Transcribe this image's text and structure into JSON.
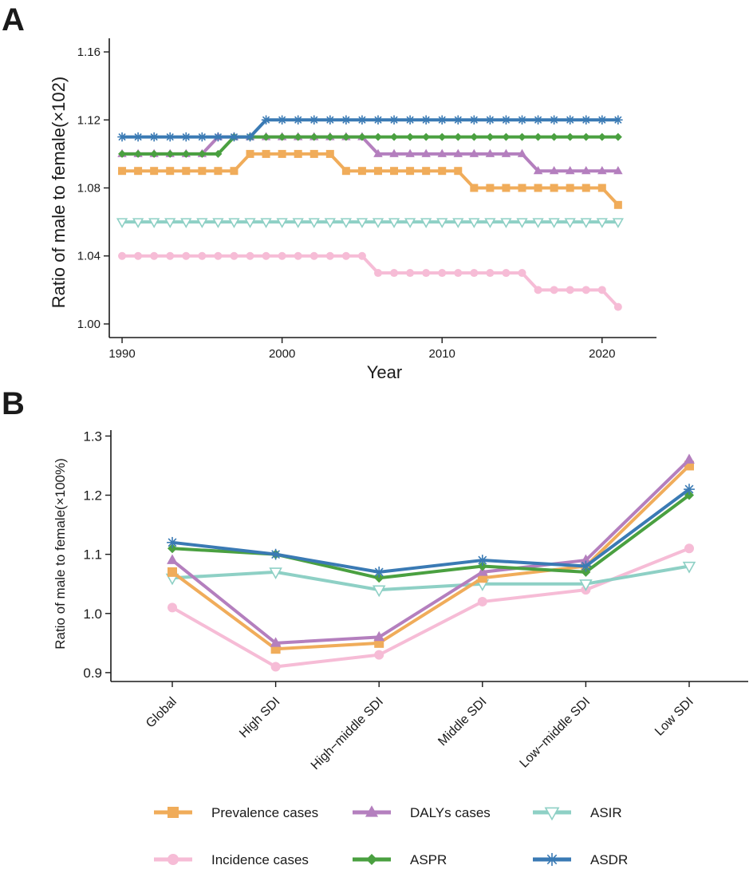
{
  "colors": {
    "prevalence": "#f0ac5a",
    "dalys": "#b47fbe",
    "asir": "#8ed0c5",
    "incidence": "#f6bcd6",
    "aspr": "#4aa040",
    "asdr": "#3a7ab4",
    "axis": "#1a1a1a"
  },
  "chart_data": [
    {
      "panel": "A",
      "type": "line",
      "xlabel": "Year",
      "ylabel": "Ratio of  male to female(×102)",
      "xlim": [
        1989.2,
        2023.4
      ],
      "ylim": [
        0.992,
        1.168
      ],
      "xticks": [
        1990,
        2000,
        2010,
        2020
      ],
      "yticks": [
        1.0,
        1.04,
        1.08,
        1.12,
        1.16
      ],
      "ytick_labels": [
        "1.00",
        "1.04",
        "1.08",
        "1.12",
        "1.16"
      ],
      "x_start": 1990,
      "series": [
        {
          "key": "asir",
          "name": "ASIR",
          "marker": "tri-down",
          "values": [
            1.06,
            1.06,
            1.06,
            1.06,
            1.06,
            1.06,
            1.06,
            1.06,
            1.06,
            1.06,
            1.06,
            1.06,
            1.06,
            1.06,
            1.06,
            1.06,
            1.06,
            1.06,
            1.06,
            1.06,
            1.06,
            1.06,
            1.06,
            1.06,
            1.06,
            1.06,
            1.06,
            1.06,
            1.06,
            1.06,
            1.06,
            1.06
          ]
        },
        {
          "key": "incidence",
          "name": "Incidence cases",
          "marker": "circle",
          "values": [
            1.04,
            1.04,
            1.04,
            1.04,
            1.04,
            1.04,
            1.04,
            1.04,
            1.04,
            1.04,
            1.04,
            1.04,
            1.04,
            1.04,
            1.04,
            1.04,
            1.03,
            1.03,
            1.03,
            1.03,
            1.03,
            1.03,
            1.03,
            1.03,
            1.03,
            1.03,
            1.02,
            1.02,
            1.02,
            1.02,
            1.02,
            1.01
          ]
        },
        {
          "key": "prevalence",
          "name": "Prevalence cases",
          "marker": "square",
          "values": [
            1.09,
            1.09,
            1.09,
            1.09,
            1.09,
            1.09,
            1.09,
            1.09,
            1.1,
            1.1,
            1.1,
            1.1,
            1.1,
            1.1,
            1.09,
            1.09,
            1.09,
            1.09,
            1.09,
            1.09,
            1.09,
            1.09,
            1.08,
            1.08,
            1.08,
            1.08,
            1.08,
            1.08,
            1.08,
            1.08,
            1.08,
            1.07
          ]
        },
        {
          "key": "dalys",
          "name": "DALYs cases",
          "marker": "tri-up",
          "values": [
            1.1,
            1.1,
            1.1,
            1.1,
            1.1,
            1.1,
            1.11,
            1.11,
            1.11,
            1.11,
            1.11,
            1.11,
            1.11,
            1.11,
            1.11,
            1.11,
            1.1,
            1.1,
            1.1,
            1.1,
            1.1,
            1.1,
            1.1,
            1.1,
            1.1,
            1.1,
            1.09,
            1.09,
            1.09,
            1.09,
            1.09,
            1.09
          ]
        },
        {
          "key": "aspr",
          "name": "ASPR",
          "marker": "diamond",
          "values": [
            1.1,
            1.1,
            1.1,
            1.1,
            1.1,
            1.1,
            1.1,
            1.11,
            1.11,
            1.11,
            1.11,
            1.11,
            1.11,
            1.11,
            1.11,
            1.11,
            1.11,
            1.11,
            1.11,
            1.11,
            1.11,
            1.11,
            1.11,
            1.11,
            1.11,
            1.11,
            1.11,
            1.11,
            1.11,
            1.11,
            1.11,
            1.11
          ]
        },
        {
          "key": "asdr",
          "name": "ASDR",
          "marker": "asterisk",
          "values": [
            1.11,
            1.11,
            1.11,
            1.11,
            1.11,
            1.11,
            1.11,
            1.11,
            1.11,
            1.12,
            1.12,
            1.12,
            1.12,
            1.12,
            1.12,
            1.12,
            1.12,
            1.12,
            1.12,
            1.12,
            1.12,
            1.12,
            1.12,
            1.12,
            1.12,
            1.12,
            1.12,
            1.12,
            1.12,
            1.12,
            1.12,
            1.12
          ]
        }
      ]
    },
    {
      "panel": "B",
      "type": "line",
      "xlabel": "",
      "ylabel": "Ratio of  male to female(×100%)",
      "categories": [
        "Global",
        "High SDI",
        "High−middle SDI",
        "Middle SDI",
        "Low−middle SDI",
        "Low SDI"
      ],
      "ylim": [
        0.885,
        1.31
      ],
      "yticks": [
        0.9,
        1.0,
        1.1,
        1.2,
        1.3
      ],
      "ytick_labels": [
        "0.9",
        "1.0",
        "1.1",
        "1.2",
        "1.3"
      ],
      "series": [
        {
          "key": "incidence",
          "name": "Incidence cases",
          "marker": "circle",
          "values": [
            1.01,
            0.91,
            0.93,
            1.02,
            1.04,
            1.11
          ]
        },
        {
          "key": "asir",
          "name": "ASIR",
          "marker": "tri-down",
          "values": [
            1.06,
            1.07,
            1.04,
            1.05,
            1.05,
            1.08
          ]
        },
        {
          "key": "prevalence",
          "name": "Prevalence cases",
          "marker": "square",
          "values": [
            1.07,
            0.94,
            0.95,
            1.06,
            1.08,
            1.25
          ]
        },
        {
          "key": "dalys",
          "name": "DALYs cases",
          "marker": "tri-up",
          "values": [
            1.09,
            0.95,
            0.96,
            1.07,
            1.09,
            1.26
          ]
        },
        {
          "key": "aspr",
          "name": "ASPR",
          "marker": "diamond",
          "values": [
            1.11,
            1.1,
            1.06,
            1.08,
            1.07,
            1.2
          ]
        },
        {
          "key": "asdr",
          "name": "ASDR",
          "marker": "asterisk",
          "values": [
            1.12,
            1.1,
            1.07,
            1.09,
            1.08,
            1.21
          ]
        }
      ]
    }
  ],
  "legend": [
    {
      "key": "prevalence",
      "label": "Prevalence cases",
      "marker": "square"
    },
    {
      "key": "dalys",
      "label": "DALYs cases",
      "marker": "tri-up"
    },
    {
      "key": "asir",
      "label": "ASIR",
      "marker": "tri-down"
    },
    {
      "key": "incidence",
      "label": "Incidence cases",
      "marker": "circle"
    },
    {
      "key": "aspr",
      "label": "ASPR",
      "marker": "diamond"
    },
    {
      "key": "asdr",
      "label": "ASDR",
      "marker": "asterisk"
    }
  ],
  "panel_labels": {
    "a": "A",
    "b": "B"
  }
}
